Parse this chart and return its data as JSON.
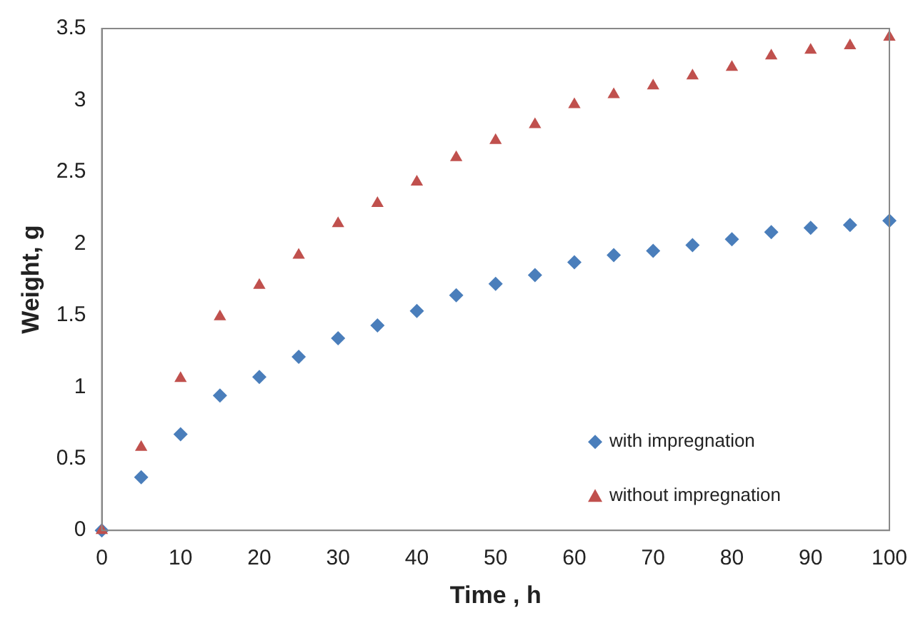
{
  "chart_data": {
    "type": "scatter",
    "xlabel": "Time , h",
    "ylabel": "Weight, g",
    "xlim": [
      0,
      100
    ],
    "xticks": [
      0,
      10,
      20,
      30,
      40,
      50,
      60,
      70,
      80,
      90,
      100
    ],
    "ylim": [
      0,
      3.5
    ],
    "yticks": [
      0,
      0.5,
      1,
      1.5,
      2,
      2.5,
      3,
      3.5
    ],
    "grid": false,
    "legend": "bottom right",
    "x": [
      0,
      5,
      10,
      15,
      20,
      25,
      30,
      35,
      40,
      45,
      50,
      55,
      60,
      65,
      70,
      75,
      80,
      85,
      90,
      95,
      100
    ],
    "series": [
      {
        "name": "with impregnation",
        "color": "#4a7ebb",
        "marker": "diamond",
        "values": [
          0,
          0.37,
          0.67,
          0.94,
          1.07,
          1.21,
          1.34,
          1.43,
          1.53,
          1.64,
          1.72,
          1.78,
          1.87,
          1.92,
          1.95,
          1.99,
          2.03,
          2.08,
          2.11,
          2.13,
          2.16
        ]
      },
      {
        "name": "without impregnation",
        "color": "#c0504d",
        "marker": "triangle",
        "values": [
          0,
          0.58,
          1.06,
          1.49,
          1.71,
          1.92,
          2.14,
          2.28,
          2.43,
          2.6,
          2.72,
          2.83,
          2.97,
          3.04,
          3.1,
          3.17,
          3.23,
          3.31,
          3.35,
          3.38,
          3.44
        ]
      }
    ]
  }
}
